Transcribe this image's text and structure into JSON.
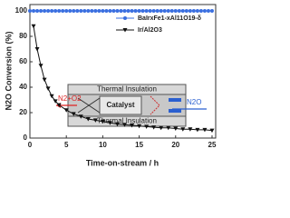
{
  "chart_data": {
    "type": "line",
    "xlabel": "Time-on-stream / h",
    "ylabel": "N2O Conversion (%)",
    "xlim": [
      0,
      25.5
    ],
    "xticks": [
      0,
      5,
      10,
      15,
      20,
      25
    ],
    "ylim": [
      0,
      105
    ],
    "yticks": [
      0,
      20,
      40,
      60,
      80,
      100
    ],
    "legend": "upper right",
    "series": [
      {
        "name": "BaIrxFe1-xAl11O19-δ",
        "color": "#3a6fe0",
        "marker": "circle",
        "x": [
          0,
          0.5,
          1,
          1.5,
          2,
          2.5,
          3,
          3.5,
          4,
          4.5,
          5,
          5.5,
          6,
          6.5,
          7,
          7.5,
          8,
          8.5,
          9,
          9.5,
          10,
          10.5,
          11,
          11.5,
          12,
          12.5,
          13,
          13.5,
          14,
          14.5,
          15,
          15.5,
          16,
          16.5,
          17,
          17.5,
          18,
          18.5,
          19,
          19.5,
          20,
          20.5,
          21,
          21.5,
          22,
          22.5,
          23,
          23.5,
          24,
          24.5,
          25
        ],
        "values": [
          100,
          100,
          100,
          100,
          100,
          100,
          100,
          100,
          100,
          100,
          100,
          100,
          100,
          100,
          100,
          100,
          100,
          100,
          100,
          100,
          100,
          100,
          100,
          100,
          100,
          100,
          100,
          100,
          100,
          100,
          100,
          100,
          100,
          100,
          100,
          100,
          100,
          100,
          100,
          100,
          100,
          100,
          100,
          100,
          100,
          100,
          100,
          100,
          100,
          100,
          100
        ]
      },
      {
        "name": "Ir/Al2O3",
        "color": "#111111",
        "marker": "triangle-down",
        "x": [
          0.5,
          1,
          1.5,
          2,
          2.5,
          3,
          3.5,
          4,
          5,
          6,
          7,
          8,
          9,
          10,
          11,
          12,
          13,
          14,
          15,
          16,
          17,
          18,
          19,
          20,
          21,
          22,
          23,
          24,
          25
        ],
        "values": [
          88,
          70,
          57,
          46,
          39,
          33,
          29,
          26,
          22,
          19,
          17,
          15,
          14,
          13,
          12,
          11,
          10.5,
          10,
          9.5,
          9,
          8.5,
          8,
          8,
          7.5,
          7,
          7,
          6.5,
          6.5,
          6
        ]
      }
    ],
    "annotations": [
      "Thermal Insulation",
      "Catalyst",
      "Thermal Insulation",
      "N2+O2",
      "N2O"
    ]
  }
}
